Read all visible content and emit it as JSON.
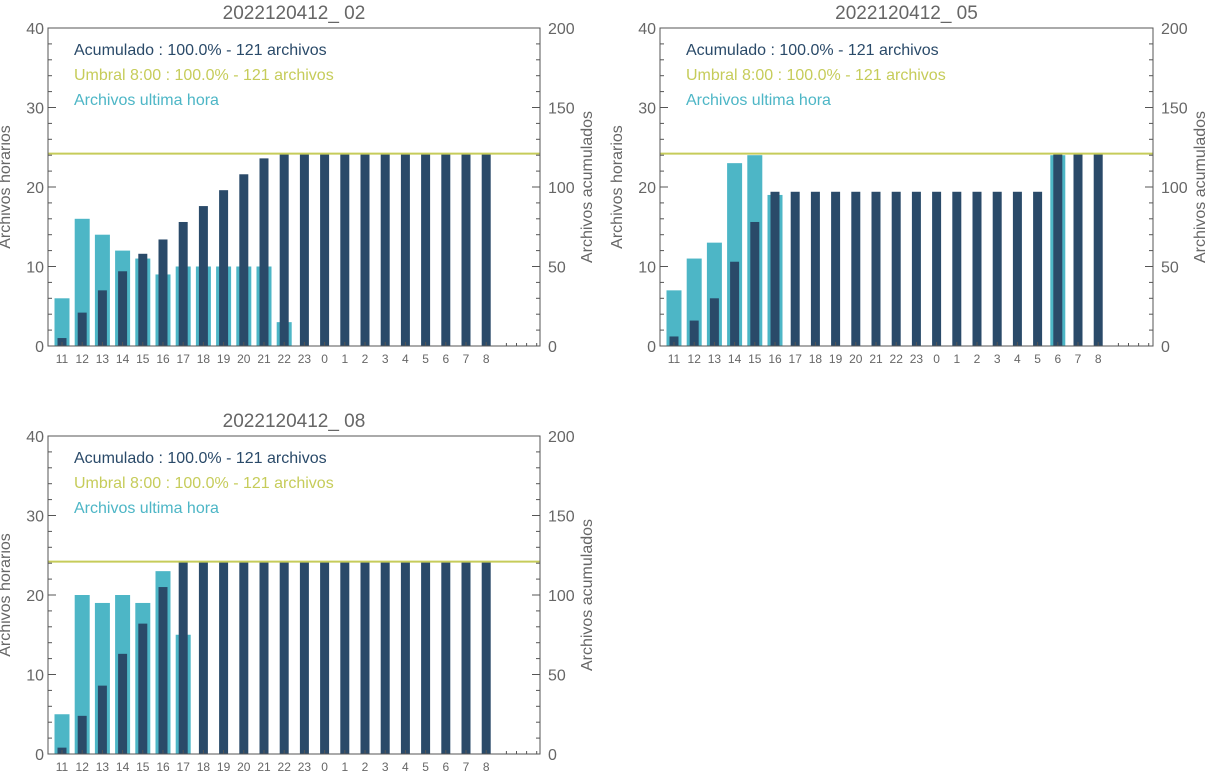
{
  "colors": {
    "hourly": "#4db6c6",
    "cumulative": "#2a4a69",
    "threshold": "#c6cc5a",
    "axis": "#555555",
    "text": "#666666"
  },
  "chart_data": [
    {
      "type": "bar",
      "title": "2022120412_ 02",
      "ylabel_left": "Archivos horarios",
      "ylabel_right": "Archivos acumulados",
      "ylim_left": [
        0,
        40
      ],
      "ylim_right": [
        0,
        200
      ],
      "yticks_left": [
        "0",
        "10",
        "20",
        "30",
        "40"
      ],
      "yticks_right": [
        "0",
        "50",
        "100",
        "150",
        "200"
      ],
      "categories": [
        "11",
        "12",
        "13",
        "14",
        "15",
        "16",
        "17",
        "18",
        "19",
        "20",
        "21",
        "22",
        "23",
        "0",
        "1",
        "2",
        "3",
        "4",
        "5",
        "6",
        "7",
        "8"
      ],
      "legend": {
        "cumulative": "Acumulado : 100.0% - 121 archivos",
        "threshold": "Umbral 8:00 : 100.0% - 121 archivos",
        "hourly": "Archivos ultima hora"
      },
      "threshold_value": 121,
      "series": [
        {
          "name": "Archivos ultima hora",
          "axis": "left",
          "values": [
            6,
            16,
            14,
            12,
            11,
            9,
            10,
            10,
            10,
            10,
            10,
            3,
            0,
            0,
            0,
            0,
            0,
            0,
            0,
            0,
            0,
            0
          ]
        },
        {
          "name": "Acumulado",
          "axis": "right",
          "values": [
            5,
            21,
            35,
            47,
            58,
            67,
            78,
            88,
            98,
            108,
            118,
            121,
            121,
            121,
            121,
            121,
            121,
            121,
            121,
            121,
            121,
            121
          ]
        }
      ]
    },
    {
      "type": "bar",
      "title": "2022120412_ 05",
      "ylabel_left": "Archivos horarios",
      "ylabel_right": "Archivos acumulados",
      "ylim_left": [
        0,
        40
      ],
      "ylim_right": [
        0,
        200
      ],
      "yticks_left": [
        "0",
        "10",
        "20",
        "30",
        "40"
      ],
      "yticks_right": [
        "0",
        "50",
        "100",
        "150",
        "200"
      ],
      "categories": [
        "11",
        "12",
        "13",
        "14",
        "15",
        "16",
        "17",
        "18",
        "19",
        "20",
        "21",
        "22",
        "23",
        "0",
        "1",
        "2",
        "3",
        "4",
        "5",
        "6",
        "7",
        "8"
      ],
      "legend": {
        "cumulative": "Acumulado : 100.0% - 121 archivos",
        "threshold": "Umbral 8:00 : 100.0% - 121 archivos",
        "hourly": "Archivos ultima hora"
      },
      "threshold_value": 121,
      "series": [
        {
          "name": "Archivos ultima hora",
          "axis": "left",
          "values": [
            7,
            11,
            13,
            23,
            24,
            19,
            0,
            0,
            0,
            0,
            0,
            0,
            0,
            0,
            0,
            0,
            0,
            0,
            0,
            24,
            0,
            0
          ]
        },
        {
          "name": "Acumulado",
          "axis": "right",
          "values": [
            6,
            16,
            30,
            53,
            78,
            97,
            97,
            97,
            97,
            97,
            97,
            97,
            97,
            97,
            97,
            97,
            97,
            97,
            97,
            121,
            121,
            121
          ]
        }
      ]
    },
    {
      "type": "bar",
      "title": "2022120412_ 08",
      "ylabel_left": "Archivos horarios",
      "ylabel_right": "Archivos acumulados",
      "ylim_left": [
        0,
        40
      ],
      "ylim_right": [
        0,
        200
      ],
      "yticks_left": [
        "0",
        "10",
        "20",
        "30",
        "40"
      ],
      "yticks_right": [
        "0",
        "50",
        "100",
        "150",
        "200"
      ],
      "categories": [
        "11",
        "12",
        "13",
        "14",
        "15",
        "16",
        "17",
        "18",
        "19",
        "20",
        "21",
        "22",
        "23",
        "0",
        "1",
        "2",
        "3",
        "4",
        "5",
        "6",
        "7",
        "8"
      ],
      "legend": {
        "cumulative": "Acumulado : 100.0% - 121 archivos",
        "threshold": "Umbral 8:00 : 100.0% - 121 archivos",
        "hourly": "Archivos ultima hora"
      },
      "threshold_value": 121,
      "series": [
        {
          "name": "Archivos ultima hora",
          "axis": "left",
          "values": [
            5,
            20,
            19,
            20,
            19,
            23,
            15,
            0,
            0,
            0,
            0,
            0,
            0,
            0,
            0,
            0,
            0,
            0,
            0,
            0,
            0,
            0
          ]
        },
        {
          "name": "Acumulado",
          "axis": "right",
          "values": [
            4,
            24,
            43,
            63,
            82,
            105,
            121,
            121,
            121,
            121,
            121,
            121,
            121,
            121,
            121,
            121,
            121,
            121,
            121,
            121,
            121,
            121
          ]
        }
      ]
    }
  ]
}
